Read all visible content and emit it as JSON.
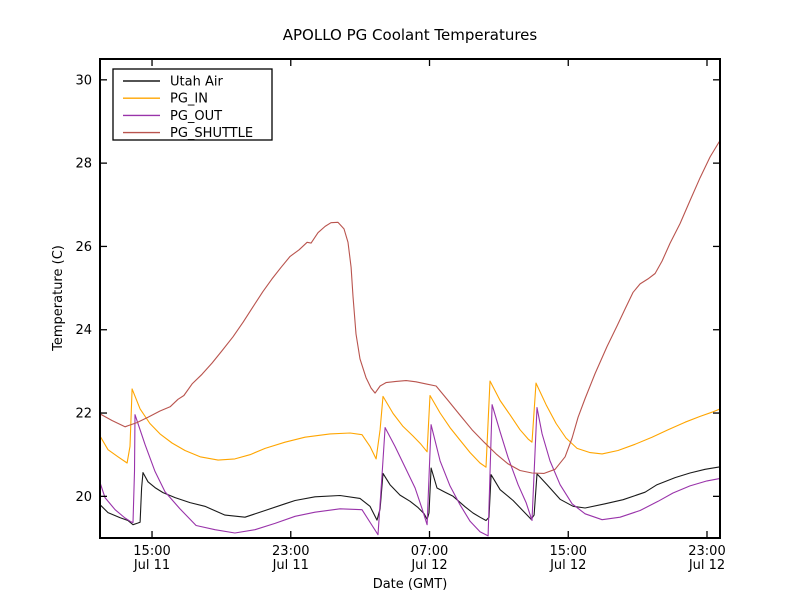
{
  "chart_data": {
    "type": "line",
    "title": "APOLLO PG Coolant Temperatures",
    "xlabel": "Date (GMT)",
    "ylabel": "Temperature (C)",
    "grid": false,
    "legend_position": "upper left",
    "x_unit": "hours after Jul 11 12:00 GMT",
    "xlim": [
      0,
      35.75
    ],
    "ylim": [
      19.0,
      30.5
    ],
    "yticks": [
      20,
      22,
      24,
      26,
      28,
      30
    ],
    "xticks": [
      {
        "hour": 3,
        "time": "15:00",
        "date": "Jul 11"
      },
      {
        "hour": 11,
        "time": "23:00",
        "date": "Jul 11"
      },
      {
        "hour": 19,
        "time": "07:00",
        "date": "Jul 12"
      },
      {
        "hour": 27,
        "time": "15:00",
        "date": "Jul 12"
      },
      {
        "hour": 35,
        "time": "23:00",
        "date": "Jul 12"
      }
    ],
    "colors": {
      "axis": "#000000",
      "background": "#ffffff"
    },
    "series": [
      {
        "name": "Utah Air",
        "color": "#1a1a1a",
        "points": [
          [
            0,
            19.8
          ],
          [
            0.46,
            19.61
          ],
          [
            1.15,
            19.49
          ],
          [
            1.61,
            19.42
          ],
          [
            1.9,
            19.32
          ],
          [
            2.19,
            19.36
          ],
          [
            2.31,
            19.38
          ],
          [
            2.4,
            20.2
          ],
          [
            2.48,
            20.57
          ],
          [
            2.77,
            20.35
          ],
          [
            3.17,
            20.21
          ],
          [
            3.63,
            20.09
          ],
          [
            4.33,
            19.97
          ],
          [
            5.19,
            19.85
          ],
          [
            6.05,
            19.76
          ],
          [
            7.21,
            19.55
          ],
          [
            8.36,
            19.5
          ],
          [
            9.52,
            19.66
          ],
          [
            10.67,
            19.82
          ],
          [
            11.25,
            19.9
          ],
          [
            12.4,
            19.99
          ],
          [
            13.84,
            20.02
          ],
          [
            14.99,
            19.95
          ],
          [
            15.57,
            19.76
          ],
          [
            15.97,
            19.43
          ],
          [
            16.15,
            19.7
          ],
          [
            16.32,
            20.55
          ],
          [
            16.72,
            20.28
          ],
          [
            17.3,
            20.03
          ],
          [
            17.88,
            19.88
          ],
          [
            18.34,
            19.73
          ],
          [
            18.69,
            19.58
          ],
          [
            18.86,
            19.45
          ],
          [
            18.97,
            19.6
          ],
          [
            19.09,
            20.68
          ],
          [
            19.43,
            20.2
          ],
          [
            19.9,
            20.1
          ],
          [
            20.36,
            20.0
          ],
          [
            21.05,
            19.75
          ],
          [
            21.51,
            19.6
          ],
          [
            21.91,
            19.5
          ],
          [
            22.26,
            19.42
          ],
          [
            22.43,
            19.5
          ],
          [
            22.55,
            20.52
          ],
          [
            23.07,
            20.16
          ],
          [
            23.82,
            19.9
          ],
          [
            24.51,
            19.6
          ],
          [
            24.86,
            19.45
          ],
          [
            25.03,
            19.55
          ],
          [
            25.2,
            20.54
          ],
          [
            25.78,
            20.28
          ],
          [
            26.53,
            19.93
          ],
          [
            27.28,
            19.76
          ],
          [
            27.97,
            19.72
          ],
          [
            29.12,
            19.82
          ],
          [
            30.16,
            19.92
          ],
          [
            31.43,
            20.1
          ],
          [
            32.12,
            20.28
          ],
          [
            33.16,
            20.45
          ],
          [
            34.02,
            20.56
          ],
          [
            34.89,
            20.65
          ],
          [
            35.76,
            20.71
          ]
        ]
      },
      {
        "name": "PG_IN",
        "color": "#ffa500",
        "points": [
          [
            0,
            21.45
          ],
          [
            0.46,
            21.12
          ],
          [
            1.04,
            20.95
          ],
          [
            1.56,
            20.8
          ],
          [
            1.73,
            21.2
          ],
          [
            1.85,
            22.58
          ],
          [
            2.31,
            22.1
          ],
          [
            2.88,
            21.75
          ],
          [
            3.46,
            21.5
          ],
          [
            4.15,
            21.28
          ],
          [
            4.9,
            21.1
          ],
          [
            5.77,
            20.95
          ],
          [
            6.81,
            20.87
          ],
          [
            7.78,
            20.9
          ],
          [
            8.65,
            21.0
          ],
          [
            9.52,
            21.15
          ],
          [
            10.67,
            21.3
          ],
          [
            11.82,
            21.42
          ],
          [
            13.26,
            21.5
          ],
          [
            14.42,
            21.52
          ],
          [
            15.11,
            21.48
          ],
          [
            15.57,
            21.2
          ],
          [
            15.92,
            20.9
          ],
          [
            16.15,
            21.6
          ],
          [
            16.32,
            22.4
          ],
          [
            16.9,
            21.99
          ],
          [
            17.47,
            21.68
          ],
          [
            18.05,
            21.45
          ],
          [
            18.51,
            21.25
          ],
          [
            18.86,
            21.07
          ],
          [
            19.03,
            22.42
          ],
          [
            19.61,
            22.0
          ],
          [
            20.18,
            21.65
          ],
          [
            20.76,
            21.35
          ],
          [
            21.34,
            21.05
          ],
          [
            21.91,
            20.8
          ],
          [
            22.26,
            20.7
          ],
          [
            22.49,
            22.77
          ],
          [
            23.07,
            22.3
          ],
          [
            23.65,
            21.95
          ],
          [
            24.22,
            21.6
          ],
          [
            24.68,
            21.38
          ],
          [
            24.91,
            21.3
          ],
          [
            25.14,
            22.72
          ],
          [
            25.72,
            22.2
          ],
          [
            26.3,
            21.75
          ],
          [
            26.87,
            21.4
          ],
          [
            27.51,
            21.15
          ],
          [
            28.26,
            21.05
          ],
          [
            28.95,
            21.02
          ],
          [
            29.87,
            21.1
          ],
          [
            30.85,
            21.25
          ],
          [
            31.83,
            21.42
          ],
          [
            32.76,
            21.6
          ],
          [
            33.74,
            21.78
          ],
          [
            34.6,
            21.92
          ],
          [
            35.29,
            22.02
          ],
          [
            35.76,
            22.1
          ]
        ]
      },
      {
        "name": "PG_OUT",
        "color": "#9933aa",
        "points": [
          [
            0,
            20.33
          ],
          [
            0.29,
            19.97
          ],
          [
            0.87,
            19.68
          ],
          [
            1.44,
            19.48
          ],
          [
            1.79,
            19.39
          ],
          [
            1.9,
            19.37
          ],
          [
            1.99,
            20.6
          ],
          [
            2.02,
            21.96
          ],
          [
            2.6,
            21.24
          ],
          [
            3.17,
            20.6
          ],
          [
            3.75,
            20.11
          ],
          [
            4.61,
            19.7
          ],
          [
            5.54,
            19.3
          ],
          [
            6.63,
            19.2
          ],
          [
            7.78,
            19.12
          ],
          [
            8.94,
            19.2
          ],
          [
            10.09,
            19.35
          ],
          [
            11.25,
            19.52
          ],
          [
            12.4,
            19.62
          ],
          [
            13.84,
            19.7
          ],
          [
            15.11,
            19.68
          ],
          [
            15.69,
            19.3
          ],
          [
            16.03,
            19.08
          ],
          [
            16.26,
            20.5
          ],
          [
            16.44,
            21.65
          ],
          [
            17.01,
            21.2
          ],
          [
            17.59,
            20.7
          ],
          [
            18.17,
            20.2
          ],
          [
            18.57,
            19.7
          ],
          [
            18.86,
            19.32
          ],
          [
            19.09,
            21.72
          ],
          [
            19.61,
            20.85
          ],
          [
            20.18,
            20.25
          ],
          [
            20.76,
            19.8
          ],
          [
            21.34,
            19.4
          ],
          [
            21.91,
            19.15
          ],
          [
            22.38,
            19.05
          ],
          [
            22.61,
            22.2
          ],
          [
            23.07,
            21.55
          ],
          [
            23.53,
            20.93
          ],
          [
            24.11,
            20.28
          ],
          [
            24.57,
            19.85
          ],
          [
            24.91,
            19.42
          ],
          [
            25.2,
            22.13
          ],
          [
            25.49,
            21.5
          ],
          [
            25.95,
            20.85
          ],
          [
            26.53,
            20.28
          ],
          [
            27.22,
            19.82
          ],
          [
            27.97,
            19.58
          ],
          [
            28.95,
            19.44
          ],
          [
            29.99,
            19.5
          ],
          [
            31.14,
            19.66
          ],
          [
            32.18,
            19.88
          ],
          [
            33.04,
            20.08
          ],
          [
            34.02,
            20.25
          ],
          [
            35.0,
            20.37
          ],
          [
            35.76,
            20.43
          ]
        ]
      },
      {
        "name": "PG_SHUTTLE",
        "color": "#b9544e",
        "points": [
          [
            0,
            21.98
          ],
          [
            0.69,
            21.82
          ],
          [
            1.44,
            21.67
          ],
          [
            2.13,
            21.77
          ],
          [
            2.77,
            21.9
          ],
          [
            3.46,
            22.05
          ],
          [
            4.04,
            22.15
          ],
          [
            4.5,
            22.33
          ],
          [
            4.84,
            22.42
          ],
          [
            5.31,
            22.7
          ],
          [
            5.88,
            22.93
          ],
          [
            6.46,
            23.2
          ],
          [
            7.04,
            23.5
          ],
          [
            7.67,
            23.83
          ],
          [
            8.25,
            24.18
          ],
          [
            8.82,
            24.55
          ],
          [
            9.4,
            24.92
          ],
          [
            9.92,
            25.22
          ],
          [
            10.44,
            25.5
          ],
          [
            10.96,
            25.76
          ],
          [
            11.48,
            25.92
          ],
          [
            11.94,
            26.1
          ],
          [
            12.17,
            26.08
          ],
          [
            12.57,
            26.33
          ],
          [
            12.98,
            26.48
          ],
          [
            13.32,
            26.57
          ],
          [
            13.72,
            26.58
          ],
          [
            14.07,
            26.42
          ],
          [
            14.3,
            26.1
          ],
          [
            14.48,
            25.5
          ],
          [
            14.59,
            24.8
          ],
          [
            14.76,
            23.9
          ],
          [
            14.99,
            23.3
          ],
          [
            15.34,
            22.85
          ],
          [
            15.63,
            22.6
          ],
          [
            15.86,
            22.48
          ],
          [
            16.15,
            22.65
          ],
          [
            16.49,
            22.73
          ],
          [
            17.07,
            22.76
          ],
          [
            17.65,
            22.78
          ],
          [
            18.22,
            22.75
          ],
          [
            18.8,
            22.7
          ],
          [
            19.38,
            22.65
          ],
          [
            20.07,
            22.3
          ],
          [
            20.76,
            21.95
          ],
          [
            21.45,
            21.6
          ],
          [
            22.15,
            21.3
          ],
          [
            22.84,
            21.02
          ],
          [
            23.53,
            20.78
          ],
          [
            24.22,
            20.62
          ],
          [
            24.91,
            20.56
          ],
          [
            25.61,
            20.55
          ],
          [
            26.24,
            20.65
          ],
          [
            26.82,
            20.95
          ],
          [
            27.22,
            21.4
          ],
          [
            27.57,
            21.9
          ],
          [
            27.97,
            22.35
          ],
          [
            28.55,
            22.95
          ],
          [
            29.24,
            23.6
          ],
          [
            29.82,
            24.1
          ],
          [
            30.28,
            24.5
          ],
          [
            30.74,
            24.9
          ],
          [
            31.14,
            25.1
          ],
          [
            31.6,
            25.22
          ],
          [
            32.01,
            25.35
          ],
          [
            32.41,
            25.65
          ],
          [
            32.87,
            26.08
          ],
          [
            33.45,
            26.55
          ],
          [
            34.02,
            27.1
          ],
          [
            34.6,
            27.65
          ],
          [
            35.18,
            28.15
          ],
          [
            35.64,
            28.47
          ],
          [
            35.76,
            28.55
          ]
        ]
      }
    ]
  }
}
